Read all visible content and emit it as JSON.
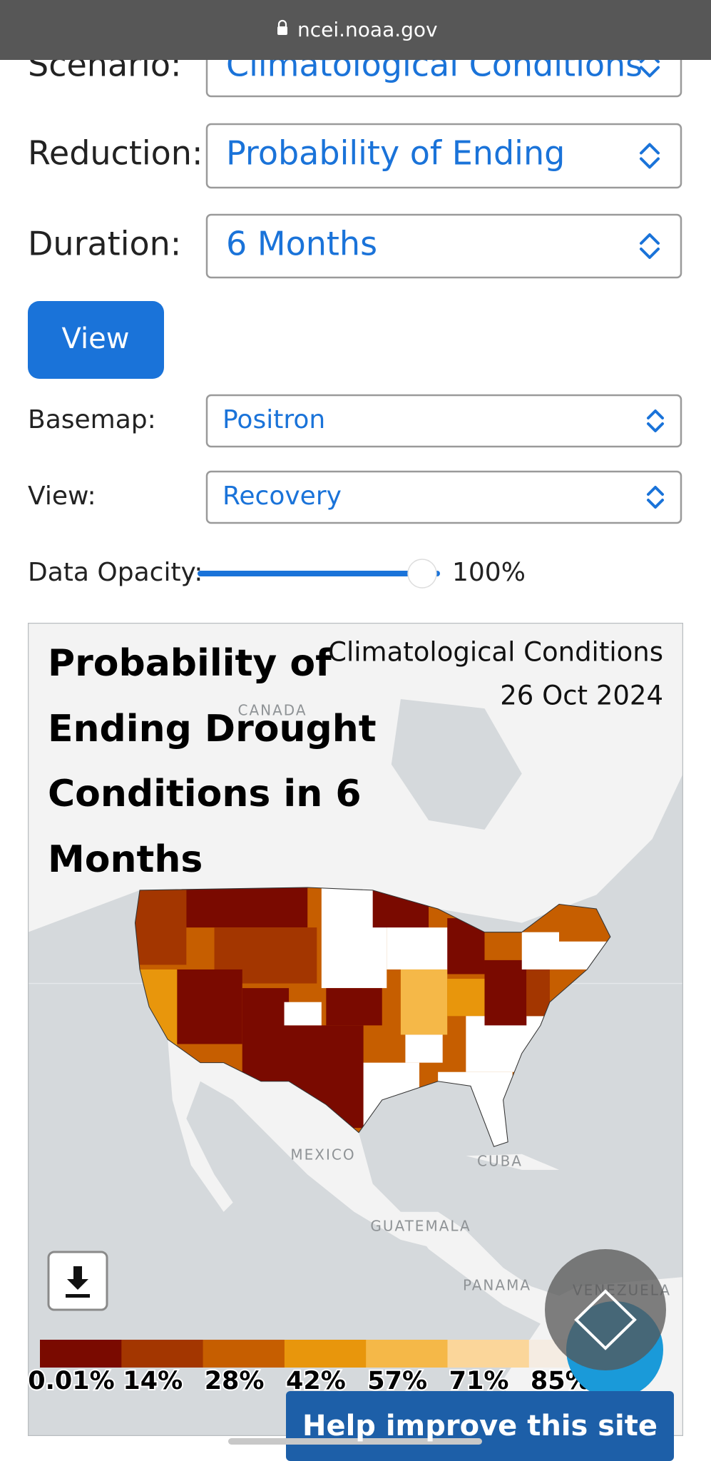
{
  "browser": {
    "url": "ncei.noaa.gov"
  },
  "form": {
    "fields": [
      {
        "label": "Scenario:",
        "value": "Climatological Conditions"
      },
      {
        "label": "Reduction:",
        "value": "Probability of Ending"
      },
      {
        "label": "Duration:",
        "value": "6 Months"
      }
    ],
    "button": "View",
    "display_fields": [
      {
        "label": "Basemap:",
        "value": "Positron"
      },
      {
        "label": "View:",
        "value": "Recovery"
      }
    ],
    "opacity": {
      "label": "Data Opacity:",
      "value": "100%"
    }
  },
  "map": {
    "title_lines": [
      "Probability of",
      "Ending Drought",
      "Conditions in 6",
      "Months"
    ],
    "scenario": "Climatological Conditions",
    "date": "26 Oct 2024",
    "places": [
      "CANADA",
      "MEXICO",
      "CUBA",
      "GUATEMALA",
      "PANAMA",
      "VENEZUELA"
    ],
    "legend": [
      {
        "label": "0.01%",
        "color": "#7a0a00"
      },
      {
        "label": "14%",
        "color": "#a33600"
      },
      {
        "label": "28%",
        "color": "#c65e00"
      },
      {
        "label": "42%",
        "color": "#e8960c"
      },
      {
        "label": "57%",
        "color": "#f5b848"
      },
      {
        "label": "71%",
        "color": "#fbd69a"
      },
      {
        "label": "85%",
        "color": "#f5ece2"
      }
    ]
  },
  "banner": "Help improve this site"
}
